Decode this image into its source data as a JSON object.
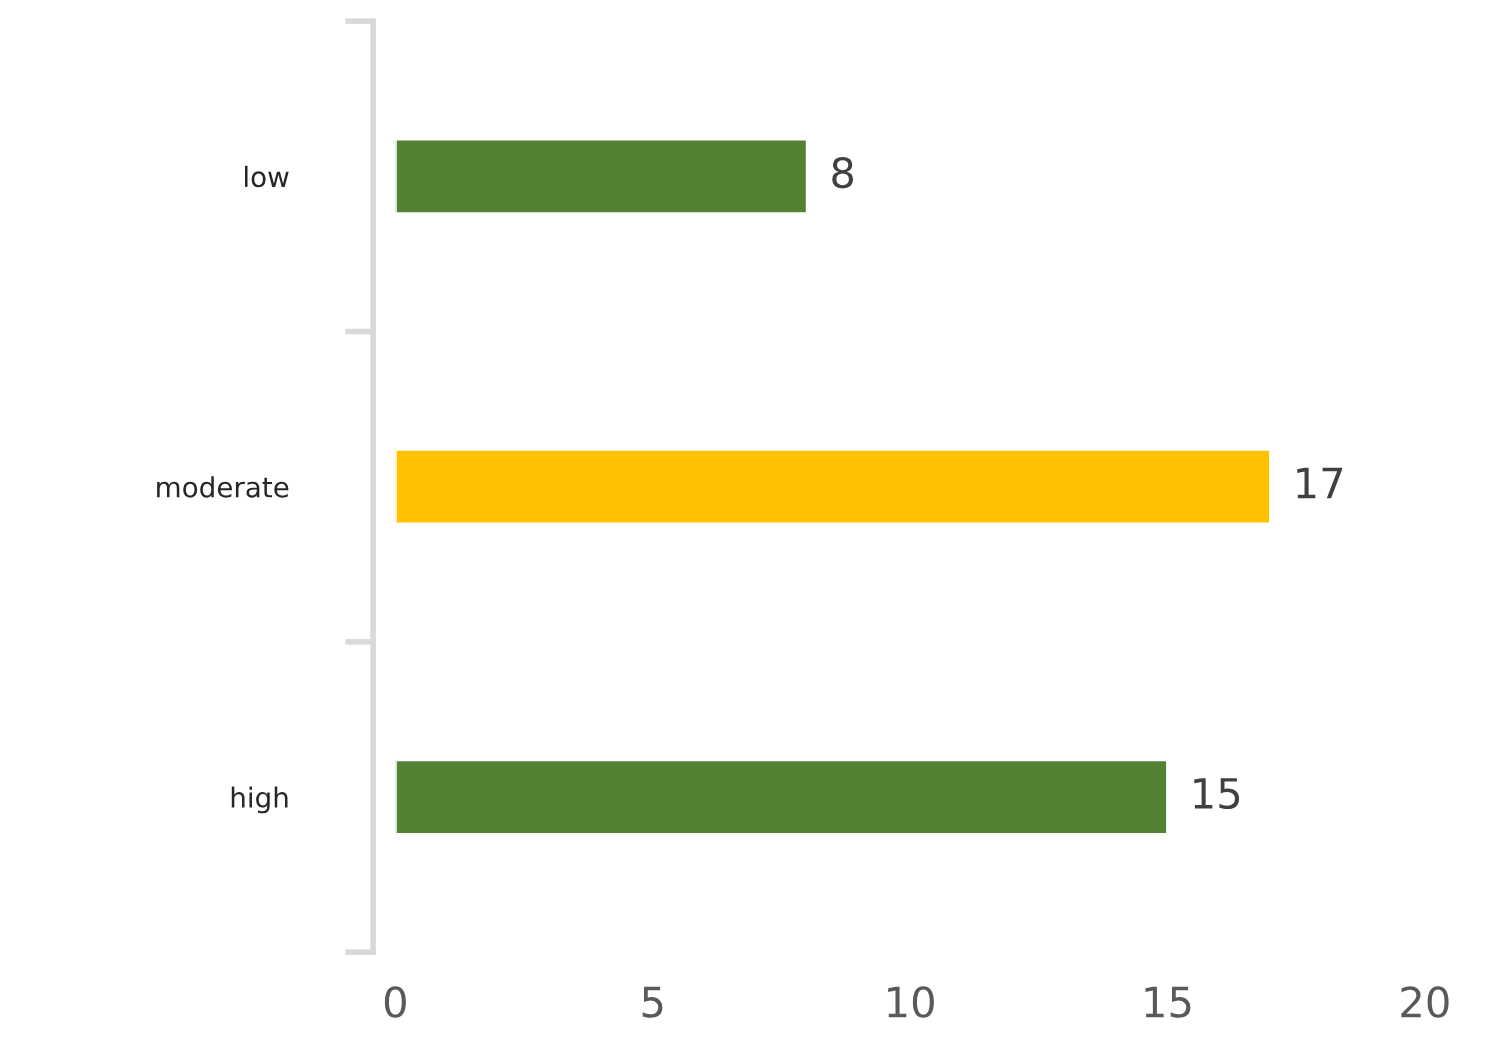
{
  "chart_data": {
    "type": "bar",
    "orientation": "horizontal",
    "categories": [
      "low",
      "moderate",
      "high"
    ],
    "values": [
      8,
      17,
      15
    ],
    "colors": [
      "#548235",
      "#ffc000",
      "#548235"
    ],
    "xlim": [
      0,
      20
    ],
    "xticks": [
      0,
      5,
      10,
      15,
      20
    ],
    "data_labels": true,
    "grid": false,
    "legend": false
  }
}
